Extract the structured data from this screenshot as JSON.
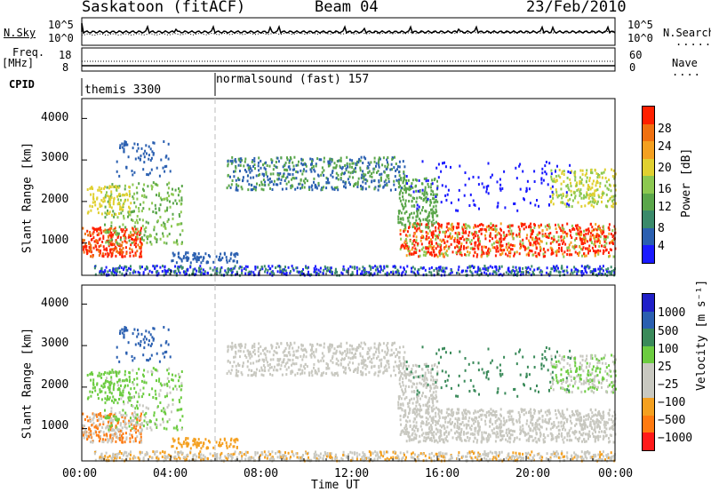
{
  "header": {
    "site": "Saskatoon (fitACF)",
    "beam": "Beam 04",
    "date": "23/Feb/2010"
  },
  "side_labels": {
    "nsky": "N.Sky",
    "freq_line1": "Freq.",
    "freq_line2": "[MHz]",
    "cpid": "CPID",
    "nsearch": "N.Search",
    "nave": "Nave"
  },
  "noise_axis": {
    "left_top": "10^5",
    "left_bottom": "10^0",
    "right_top": "10^5",
    "right_bottom": "10^0"
  },
  "freq_axis": {
    "left_top": "18",
    "left_bottom": "8",
    "right_top": "60",
    "right_bottom": "0"
  },
  "cpid_segments": [
    {
      "label": "themis 3300",
      "start_hour": 0
    },
    {
      "label": "normalsound (fast) 157",
      "start_hour": 6
    }
  ],
  "colors": {
    "power_scale": [
      "#1a1aff",
      "#2a5fb0",
      "#3a8a6a",
      "#5aa64a",
      "#8cc850",
      "#e0d030",
      "#f4a020",
      "#f07010",
      "#ff2000"
    ],
    "velocity_scale": [
      "#ff1a1a",
      "#ff7a10",
      "#f4a020",
      "#c8c8c0",
      "#c8c8c0",
      "#6ccc40",
      "#3a8a5a",
      "#2a5fb0",
      "#2020c8"
    ]
  },
  "chart_data": [
    {
      "type": "heatmap",
      "panel": "power",
      "ylabel": "Slant Range [km]",
      "ylim": [
        180,
        4500
      ],
      "y_ticks": [
        "1000",
        "2000",
        "3000",
        "4000"
      ],
      "colorbar_label": "Power [dB]",
      "colorbar_ticks": [
        "4",
        "8",
        "12",
        "16",
        "20",
        "24",
        "28"
      ],
      "colorbar_range": [
        0,
        30
      ]
    },
    {
      "type": "heatmap",
      "panel": "velocity",
      "ylabel": "Slant Range [km]",
      "ylim": [
        180,
        4500
      ],
      "y_ticks": [
        "1000",
        "2000",
        "3000",
        "4000"
      ],
      "colorbar_label": "Velocity [m s⁻¹]",
      "colorbar_ticks": [
        "1000",
        "500",
        "100",
        "25",
        "−25",
        "−100",
        "−500",
        "−1000"
      ]
    }
  ],
  "time_axis": {
    "label": "Time UT",
    "ticks": [
      "00:00",
      "04:00",
      "08:00",
      "12:00",
      "16:00",
      "20:00",
      "00:00"
    ],
    "range_hours": [
      0,
      24
    ]
  }
}
